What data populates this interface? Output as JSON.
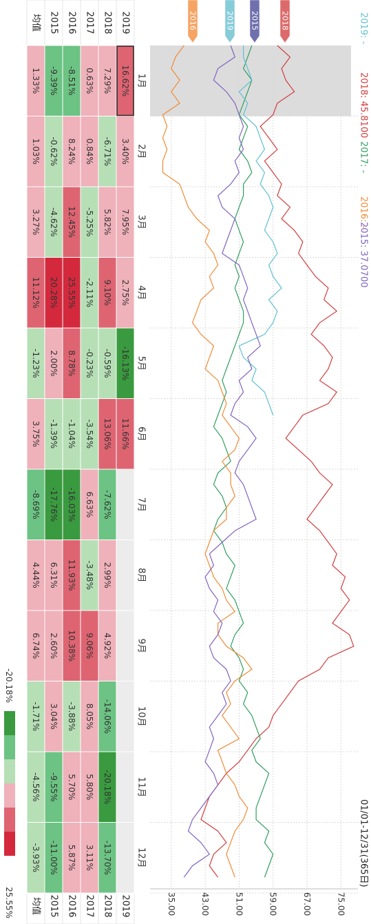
{
  "chart_data": {
    "type": "heatmap",
    "years": [
      "2019",
      "2018",
      "2017",
      "2016",
      "2015"
    ],
    "avg_label": "均值",
    "months": [
      "1月",
      "2月",
      "3月",
      "4月",
      "5月",
      "6月",
      "7月",
      "8月",
      "9月",
      "10月",
      "11月",
      "12月"
    ],
    "cells": {
      "2019": [
        "16.62%",
        "3.40%",
        "7.95%",
        "2.75%",
        "-16.13%",
        "11.66%",
        "",
        "",
        "",
        "",
        "",
        ""
      ],
      "2018": [
        "7.29%",
        "-6.71%",
        "5.82%",
        "9.10%",
        "-0.59%",
        "13.06%",
        "-7.62%",
        "2.99%",
        "4.92%",
        "-14.06%",
        "-20.18%",
        "-13.70%"
      ],
      "2017": [
        "0.63%",
        "0.84%",
        "-5.25%",
        "-2.11%",
        "-0.23%",
        "-3.54%",
        "6.63%",
        "-3.48%",
        "9.06%",
        "8.05%",
        "5.80%",
        "3.11%"
      ],
      "2016": [
        "-8.51%",
        "8.24%",
        "12.45%",
        "25.55%",
        "8.78%",
        "-1.04%",
        "-16.03%",
        "11.93%",
        "10.38%",
        "-3.88%",
        "5.70%",
        "5.87%"
      ],
      "2015": [
        "-9.39%",
        "-0.62%",
        "-4.62%",
        "20.28%",
        "2.00%",
        "-1.39%",
        "-17.76%",
        "6.31%",
        "2.60%",
        "3.04%",
        "-9.55%",
        "-11.00%"
      ],
      "avg": [
        "1.33%",
        "1.03%",
        "3.27%",
        "11.12%",
        "-1.23%",
        "3.75%",
        "-8.69%",
        "4.44%",
        "6.74%",
        "-1.71%",
        "-4.56%",
        "-3.93%"
      ]
    },
    "legend": {
      "min_label": "-20.18%",
      "max_label": "25.55%"
    },
    "colors": {
      "scale": [
        "#3a9a3f",
        "#6cc383",
        "#b6dfb6",
        "#efb1ba",
        "#de6472",
        "#d4293d"
      ],
      "empty": "#ececec",
      "highlight_band": "#dcdcdc"
    },
    "date_range_label": "01/01-12/31(365日)",
    "price_ticks": [
      "35.00",
      "43.00",
      "51.00",
      "59.00",
      "67.00",
      "75.00"
    ],
    "price_range": [
      30,
      79
    ],
    "series_legend": [
      {
        "key": "2019",
        "label": "2019: -",
        "color": "#5ec0d0"
      },
      {
        "key": "2018",
        "label": "2018: 45.8100",
        "color": "#d13c3c"
      },
      {
        "key": "2017",
        "label": "2017: -",
        "color": "#2e9e5f"
      },
      {
        "key": "2016",
        "label": "2016: -",
        "color": "#f08a34"
      },
      {
        "key": "2015",
        "label": "2015: 37.0700",
        "color": "#7f63bf"
      }
    ],
    "flags": [
      {
        "label": "2016",
        "color": "#f6a464"
      },
      {
        "label": "2019",
        "color": "#86ccd9"
      },
      {
        "label": "2015",
        "color": "#6f70ad"
      },
      {
        "label": "2018",
        "color": "#dd6a6a"
      }
    ],
    "series": [
      {
        "name": "2018",
        "color": "#d13c3c",
        "x": [
          0,
          5,
          10,
          15,
          20,
          25,
          30,
          35,
          40,
          45,
          50,
          55,
          60,
          65,
          70,
          75,
          80,
          85,
          90,
          95,
          100,
          105,
          110,
          115,
          120,
          125,
          130,
          135,
          140,
          145,
          150,
          155,
          160,
          165,
          170,
          175,
          180,
          185,
          190,
          195,
          200,
          205,
          210,
          215,
          220,
          225,
          230,
          235,
          240,
          245,
          250,
          255,
          260,
          265,
          270,
          275,
          280,
          285,
          290,
          295,
          300,
          305,
          310,
          315,
          320,
          325,
          330,
          335,
          340,
          345,
          350,
          355,
          360
        ],
        "values": [
          60,
          63,
          61,
          62,
          64,
          60,
          59,
          56,
          58,
          60,
          57,
          59,
          61,
          60,
          63,
          61,
          64,
          66,
          65,
          67,
          69,
          72,
          71,
          74,
          70,
          68,
          71,
          73,
          72,
          70,
          74,
          72,
          66,
          64,
          62,
          65,
          68,
          70,
          73,
          71,
          69,
          67,
          70,
          72,
          74,
          73,
          76,
          75,
          77,
          75,
          73,
          77,
          78,
          72,
          70,
          65,
          63,
          61,
          59,
          58,
          55,
          53,
          51,
          48,
          46,
          44,
          43,
          42,
          46,
          48,
          45,
          44,
          46
        ]
      },
      {
        "name": "2017",
        "color": "#2e9e5f",
        "x": [
          0,
          5,
          10,
          15,
          20,
          25,
          30,
          35,
          40,
          45,
          50,
          55,
          60,
          65,
          70,
          75,
          80,
          85,
          90,
          95,
          100,
          105,
          110,
          115,
          120,
          125,
          130,
          135,
          140,
          145,
          150,
          155,
          160,
          165,
          170,
          175,
          180,
          185,
          190,
          195,
          200,
          205,
          210,
          215,
          220,
          225,
          230,
          235,
          240,
          245,
          250,
          255,
          260,
          265,
          270,
          275,
          280,
          285,
          290,
          295,
          300,
          305,
          310,
          315,
          320,
          325,
          330,
          335,
          340,
          345,
          350,
          355,
          360
        ],
        "values": [
          54,
          53,
          52,
          54,
          53,
          52,
          51,
          53,
          52,
          51,
          53,
          54,
          52,
          52,
          51,
          50,
          51,
          52,
          51,
          50,
          51,
          50,
          51,
          52,
          52,
          51,
          50,
          49,
          48,
          47,
          48,
          47,
          46,
          45,
          47,
          48,
          49,
          46,
          45,
          47,
          48,
          46,
          45,
          47,
          48,
          50,
          49,
          48,
          50,
          51,
          52,
          50,
          49,
          51,
          52,
          51,
          53,
          52,
          54,
          55,
          56,
          54,
          55,
          58,
          57,
          56,
          55,
          55,
          58,
          57,
          59,
          58,
          57
        ]
      },
      {
        "name": "2019",
        "color": "#5ec0d0",
        "x": [
          0,
          5,
          10,
          15,
          20,
          25,
          30,
          35,
          40,
          45,
          50,
          55,
          60,
          65,
          70,
          75,
          80,
          85,
          90,
          95,
          100,
          105,
          110,
          115,
          120,
          125,
          130,
          135,
          140,
          145,
          150,
          155,
          160
        ],
        "values": [
          52,
          52,
          53,
          54,
          51,
          53,
          52,
          55,
          56,
          57,
          55,
          57,
          56,
          58,
          59,
          58,
          57,
          59,
          60,
          58,
          59,
          61,
          58,
          60,
          59,
          57,
          51,
          52,
          55,
          54,
          57,
          58,
          59
        ]
      },
      {
        "name": "2016",
        "color": "#f08a34",
        "x": [
          0,
          5,
          10,
          15,
          20,
          25,
          30,
          35,
          40,
          45,
          50,
          55,
          60,
          65,
          70,
          75,
          80,
          85,
          90,
          95,
          100,
          105,
          110,
          115,
          120,
          125,
          130,
          135,
          140,
          145,
          150,
          155,
          160,
          165,
          170,
          175,
          180,
          185,
          190,
          195,
          200,
          205,
          210,
          215,
          220,
          225,
          230,
          235,
          240,
          245,
          250,
          255,
          260,
          265,
          270,
          275,
          280,
          285,
          290,
          295,
          300,
          305,
          310,
          315,
          320,
          325,
          330,
          335,
          340,
          345,
          350,
          355,
          360
        ],
        "values": [
          38,
          36,
          35,
          37,
          35,
          37,
          33,
          34,
          33,
          34,
          33,
          33,
          37,
          38,
          39,
          41,
          44,
          43,
          45,
          46,
          44,
          45,
          42,
          41,
          40,
          42,
          45,
          44,
          43,
          46,
          47,
          48,
          47,
          49,
          51,
          50,
          47,
          49,
          49,
          50,
          48,
          48,
          45,
          44,
          43,
          44,
          45,
          47,
          48,
          50,
          46,
          46,
          48,
          52,
          54,
          50,
          48,
          49,
          47,
          49,
          51,
          46,
          47,
          48,
          50,
          51,
          53,
          52,
          50,
          49,
          48,
          49,
          50
        ]
      },
      {
        "name": "2015",
        "color": "#7f63bf",
        "x": [
          0,
          5,
          10,
          15,
          20,
          25,
          30,
          35,
          40,
          45,
          50,
          55,
          60,
          65,
          70,
          75,
          80,
          85,
          90,
          95,
          100,
          105,
          110,
          115,
          120,
          125,
          130,
          135,
          140,
          145,
          150,
          155,
          160,
          165,
          170,
          175,
          180,
          185,
          190,
          195,
          200,
          205,
          210,
          215,
          220,
          225,
          230,
          235,
          240,
          245,
          250,
          255,
          260,
          265,
          270,
          275,
          280,
          285,
          290,
          295,
          300,
          305,
          310,
          315,
          320,
          325,
          330,
          335,
          340,
          345,
          350,
          355,
          360
        ],
        "values": [
          49,
          50,
          46,
          45,
          48,
          50,
          51,
          52,
          51,
          52,
          50,
          51,
          49,
          46,
          47,
          50,
          49,
          48,
          47,
          51,
          52,
          53,
          52,
          53,
          54,
          55,
          56,
          53,
          54,
          51,
          52,
          50,
          49,
          53,
          55,
          53,
          51,
          50,
          52,
          53,
          54,
          55,
          50,
          47,
          44,
          45,
          43,
          44,
          46,
          45,
          47,
          46,
          44,
          45,
          48,
          49,
          47,
          48,
          46,
          44,
          45,
          44,
          43,
          45,
          46,
          44,
          42,
          40,
          39,
          42,
          44,
          40,
          38
        ]
      }
    ]
  }
}
